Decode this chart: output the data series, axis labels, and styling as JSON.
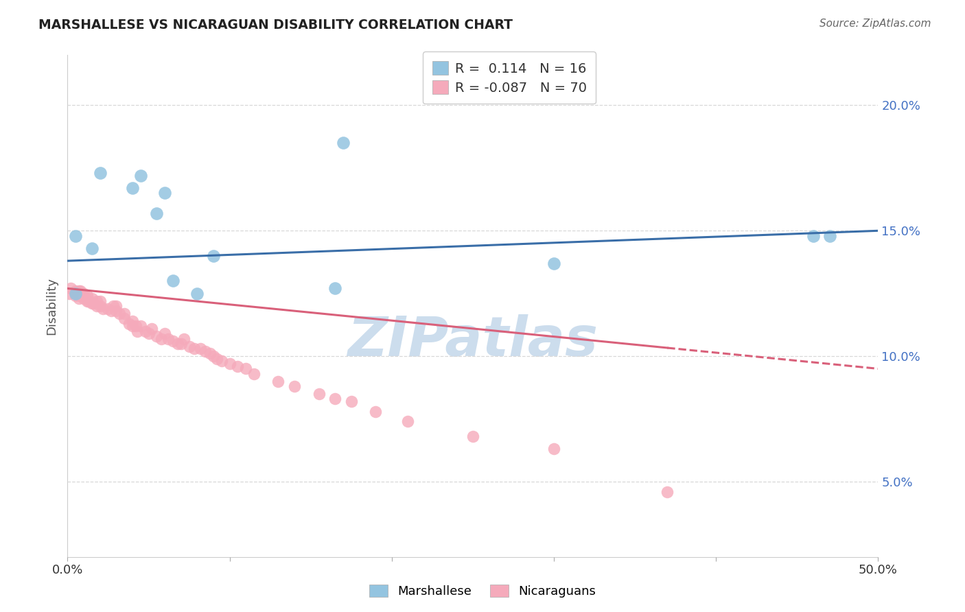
{
  "title": "MARSHALLESE VS NICARAGUAN DISABILITY CORRELATION CHART",
  "source": "Source: ZipAtlas.com",
  "ylabel": "Disability",
  "xlim": [
    0.0,
    0.5
  ],
  "ylim": [
    0.02,
    0.22
  ],
  "yticks": [
    0.05,
    0.1,
    0.15,
    0.2
  ],
  "ytick_labels": [
    "5.0%",
    "10.0%",
    "15.0%",
    "20.0%"
  ],
  "xticks": [
    0.0,
    0.1,
    0.2,
    0.3,
    0.4,
    0.5
  ],
  "xtick_labels": [
    "0.0%",
    "",
    "",
    "",
    "",
    "50.0%"
  ],
  "blue_R": 0.114,
  "blue_N": 16,
  "pink_R": -0.087,
  "pink_N": 70,
  "blue_color": "#93c4e0",
  "pink_color": "#f5aabb",
  "blue_line_color": "#3a6ea8",
  "pink_line_color": "#d9607a",
  "watermark": "ZIPatlas",
  "watermark_color": "#ccdded",
  "background": "#ffffff",
  "grid_color": "#d8d8d8",
  "blue_scatter_x": [
    0.005,
    0.015,
    0.02,
    0.04,
    0.045,
    0.055,
    0.06,
    0.065,
    0.08,
    0.09,
    0.165,
    0.17,
    0.3,
    0.46,
    0.47,
    0.005
  ],
  "blue_scatter_y": [
    0.148,
    0.143,
    0.173,
    0.167,
    0.172,
    0.157,
    0.165,
    0.13,
    0.125,
    0.14,
    0.127,
    0.185,
    0.137,
    0.148,
    0.148,
    0.125
  ],
  "pink_scatter_x": [
    0.001,
    0.002,
    0.005,
    0.005,
    0.007,
    0.007,
    0.008,
    0.008,
    0.008,
    0.009,
    0.01,
    0.01,
    0.012,
    0.012,
    0.013,
    0.015,
    0.015,
    0.016,
    0.018,
    0.018,
    0.02,
    0.02,
    0.022,
    0.025,
    0.027,
    0.028,
    0.03,
    0.03,
    0.032,
    0.035,
    0.035,
    0.038,
    0.04,
    0.04,
    0.042,
    0.043,
    0.045,
    0.048,
    0.05,
    0.052,
    0.055,
    0.058,
    0.06,
    0.062,
    0.065,
    0.068,
    0.07,
    0.072,
    0.075,
    0.078,
    0.082,
    0.085,
    0.088,
    0.09,
    0.092,
    0.095,
    0.1,
    0.105,
    0.11,
    0.115,
    0.13,
    0.14,
    0.155,
    0.165,
    0.175,
    0.19,
    0.21,
    0.25,
    0.3,
    0.37
  ],
  "pink_scatter_y": [
    0.125,
    0.127,
    0.124,
    0.126,
    0.123,
    0.126,
    0.124,
    0.126,
    0.124,
    0.125,
    0.123,
    0.125,
    0.122,
    0.124,
    0.122,
    0.121,
    0.123,
    0.121,
    0.12,
    0.122,
    0.12,
    0.122,
    0.119,
    0.119,
    0.118,
    0.12,
    0.118,
    0.12,
    0.117,
    0.115,
    0.117,
    0.113,
    0.112,
    0.114,
    0.112,
    0.11,
    0.112,
    0.11,
    0.109,
    0.111,
    0.108,
    0.107,
    0.109,
    0.107,
    0.106,
    0.105,
    0.105,
    0.107,
    0.104,
    0.103,
    0.103,
    0.102,
    0.101,
    0.1,
    0.099,
    0.098,
    0.097,
    0.096,
    0.095,
    0.093,
    0.09,
    0.088,
    0.085,
    0.083,
    0.082,
    0.078,
    0.074,
    0.068,
    0.063,
    0.046
  ],
  "pink_line_solid_end": 0.37,
  "blue_line_x0": 0.0,
  "blue_line_x1": 0.5,
  "blue_line_y0": 0.138,
  "blue_line_y1": 0.15,
  "pink_line_x0": 0.0,
  "pink_line_x1": 0.5,
  "pink_line_y0": 0.127,
  "pink_line_y1": 0.095
}
